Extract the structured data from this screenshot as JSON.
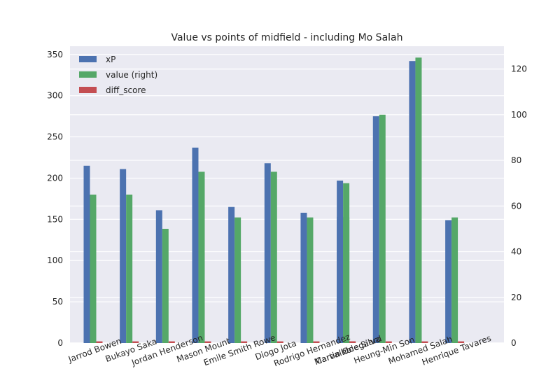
{
  "chart_data": {
    "type": "bar",
    "title": "Value vs points of midfield - including Mo Salah",
    "xlabel": "",
    "ylabel": "",
    "categories": [
      "Jarrod Bowen",
      "Bukayo Saka",
      "Jordan Henderson",
      "Mason Mount",
      "Emile Smith Rowe",
      "Diogo Jota",
      "Rodrigo Hernandez",
      "Martin Ødegaard",
      "Carvalho e Silva",
      "Heung-Min Son",
      "Mohamed Salah",
      "Henrique Tavares"
    ],
    "x_positions": [
      0,
      1,
      2,
      3,
      4,
      5,
      6,
      7,
      7,
      8,
      9,
      10
    ],
    "series": [
      {
        "name": "xP",
        "axis": "left",
        "color": "#4c72b0",
        "values": [
          215,
          211,
          161,
          237,
          165,
          218,
          158,
          197,
          153,
          275,
          342,
          149
        ]
      },
      {
        "name": "value (right)",
        "axis": "right",
        "color": "#55a868",
        "values": [
          65,
          65,
          50,
          75,
          55,
          75,
          55,
          70,
          55,
          100,
          125,
          55
        ]
      },
      {
        "name": "diff_score",
        "axis": "left",
        "color": "#c44e52",
        "values": [
          2,
          2,
          2,
          2,
          2,
          2,
          2,
          2,
          2,
          2,
          2,
          2
        ]
      }
    ],
    "ylim": [
      0,
      360
    ],
    "yticks": [
      0,
      50,
      100,
      150,
      200,
      250,
      300,
      350
    ],
    "y2lim": [
      0,
      130
    ],
    "y2ticks": [
      0,
      20,
      40,
      60,
      80,
      100,
      120
    ],
    "legend_position": "top-left",
    "grid": true,
    "colors": {
      "plot_bg": "#eaeaf2",
      "grid": "#ffffff",
      "text": "#262626"
    }
  }
}
